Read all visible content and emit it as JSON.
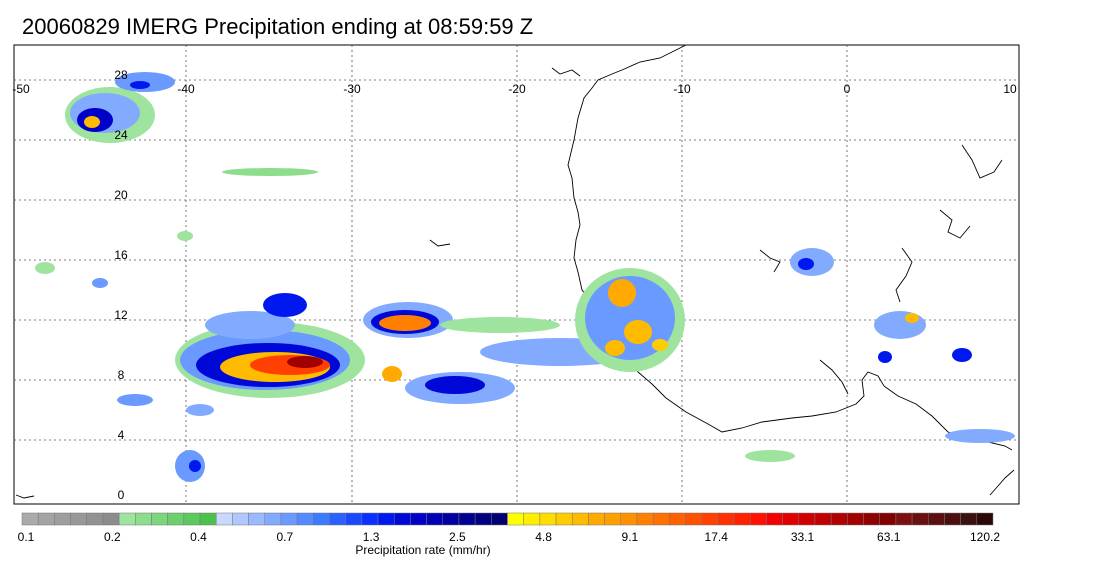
{
  "title": "20060829 IMERG Precipitation ending at 08:59:59 Z",
  "lon_ticks": [
    "-50",
    "-40",
    "-30",
    "-20",
    "-10",
    "0",
    "10"
  ],
  "lat_ticks": [
    "28",
    "24",
    "20",
    "16",
    "12",
    "8",
    "4",
    "0"
  ],
  "colorbar": {
    "label": "Precipitation rate (mm/hr)",
    "tick_labels": [
      "0.1",
      "0.2",
      "0.4",
      "0.7",
      "1.3",
      "2.5",
      "4.8",
      "9.1",
      "17.4",
      "33.1",
      "63.1",
      "120.2"
    ],
    "colors": [
      "#aaaaaa",
      "#a4a4a4",
      "#9e9e9e",
      "#989898",
      "#929292",
      "#8c8c8c",
      "#9ee39e",
      "#8ddd8d",
      "#7dd67d",
      "#6ccf6c",
      "#5cc95c",
      "#4cc24c",
      "#c8d8ff",
      "#b0c8ff",
      "#9ab9ff",
      "#82aaff",
      "#6a9aff",
      "#528bff",
      "#3b7bff",
      "#2a60ff",
      "#1a48ff",
      "#0a30ff",
      "#0018f0",
      "#0008d8",
      "#0000c8",
      "#0000b4",
      "#0000a0",
      "#000090",
      "#000080",
      "#000070",
      "#ffff00",
      "#ffee00",
      "#ffdd00",
      "#ffcc00",
      "#ffbb00",
      "#ffaa00",
      "#ffa000",
      "#ff9000",
      "#ff8000",
      "#ff7000",
      "#ff6000",
      "#ff5000",
      "#ff4000",
      "#ff3000",
      "#ff2000",
      "#ff1000",
      "#f00000",
      "#e00000",
      "#d00000",
      "#c00000",
      "#b00000",
      "#a00000",
      "#900000",
      "#800000",
      "#7a1010",
      "#6a1010",
      "#5a1010",
      "#4a1010",
      "#3a1010",
      "#2a0808"
    ]
  }
}
